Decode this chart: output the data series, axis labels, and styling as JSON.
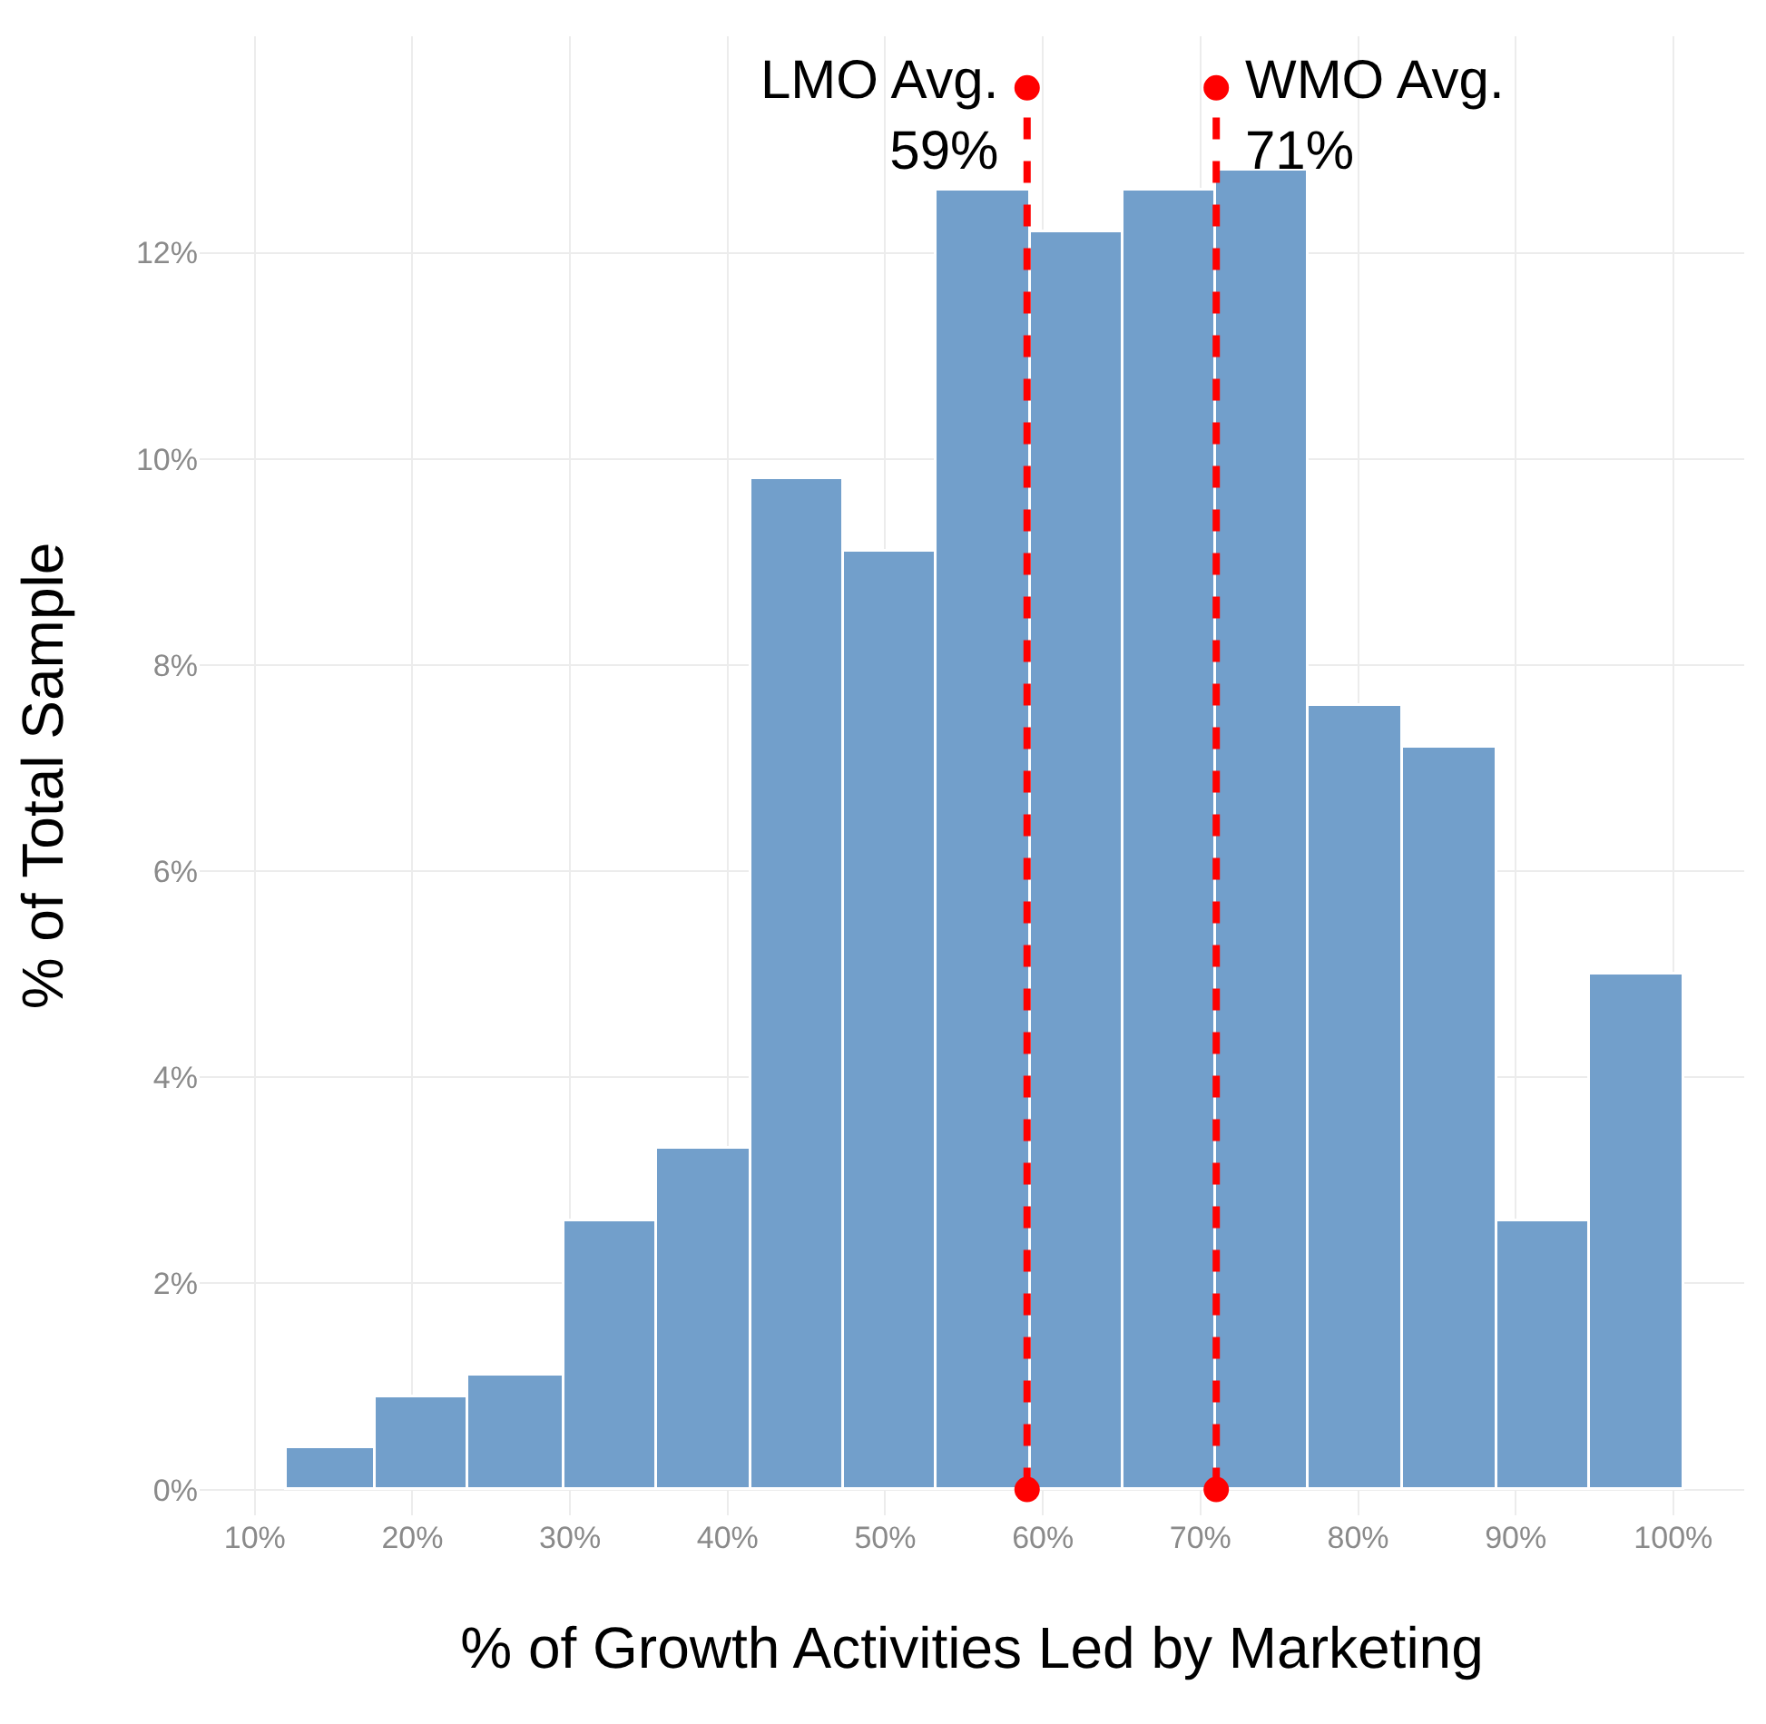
{
  "chart_data": {
    "type": "histogram",
    "xlabel": "% of Growth Activities Led by Marketing",
    "ylabel": "% of Total Sample",
    "bins": [
      12.0,
      17.7,
      23.6,
      29.7,
      35.5,
      41.5,
      47.4,
      53.3,
      59.2,
      65.1,
      71.0,
      76.9,
      82.9,
      88.8,
      94.7,
      100.7
    ],
    "values": [
      0.4,
      0.9,
      1.1,
      2.6,
      3.3,
      9.8,
      9.1,
      12.6,
      12.2,
      12.6,
      12.8,
      7.6,
      7.2,
      2.6,
      5.0
    ],
    "color": "#729fcb",
    "xlim": [
      6.5,
      104.5
    ],
    "xticks": [
      {
        "value": 10,
        "label": "10%"
      },
      {
        "value": 20,
        "label": "20%"
      },
      {
        "value": 30,
        "label": "30%"
      },
      {
        "value": 40,
        "label": "40%"
      },
      {
        "value": 50,
        "label": "50%"
      },
      {
        "value": 60,
        "label": "60%"
      },
      {
        "value": 70,
        "label": "70%"
      },
      {
        "value": 80,
        "label": "80%"
      },
      {
        "value": 90,
        "label": "90%"
      },
      {
        "value": 100,
        "label": "100%"
      }
    ],
    "ylim": [
      -0.25,
      14.1
    ],
    "yticks": [
      {
        "value": 0,
        "label": "0%"
      },
      {
        "value": 2,
        "label": "2%"
      },
      {
        "value": 4,
        "label": "4%"
      },
      {
        "value": 6,
        "label": "6%"
      },
      {
        "value": 8,
        "label": "8%"
      },
      {
        "value": 10,
        "label": "10%"
      },
      {
        "value": 12,
        "label": "12%"
      }
    ],
    "grid": true,
    "ref_lines": [
      {
        "axis": "x",
        "value": 59,
        "label": "LMO Avg.\n59%",
        "color": "#ff0000",
        "line_style": "dashed"
      },
      {
        "axis": "x",
        "value": 71,
        "label": "WMO Avg.\n71%",
        "color": "#ff0000",
        "line_style": "dashed"
      }
    ]
  }
}
